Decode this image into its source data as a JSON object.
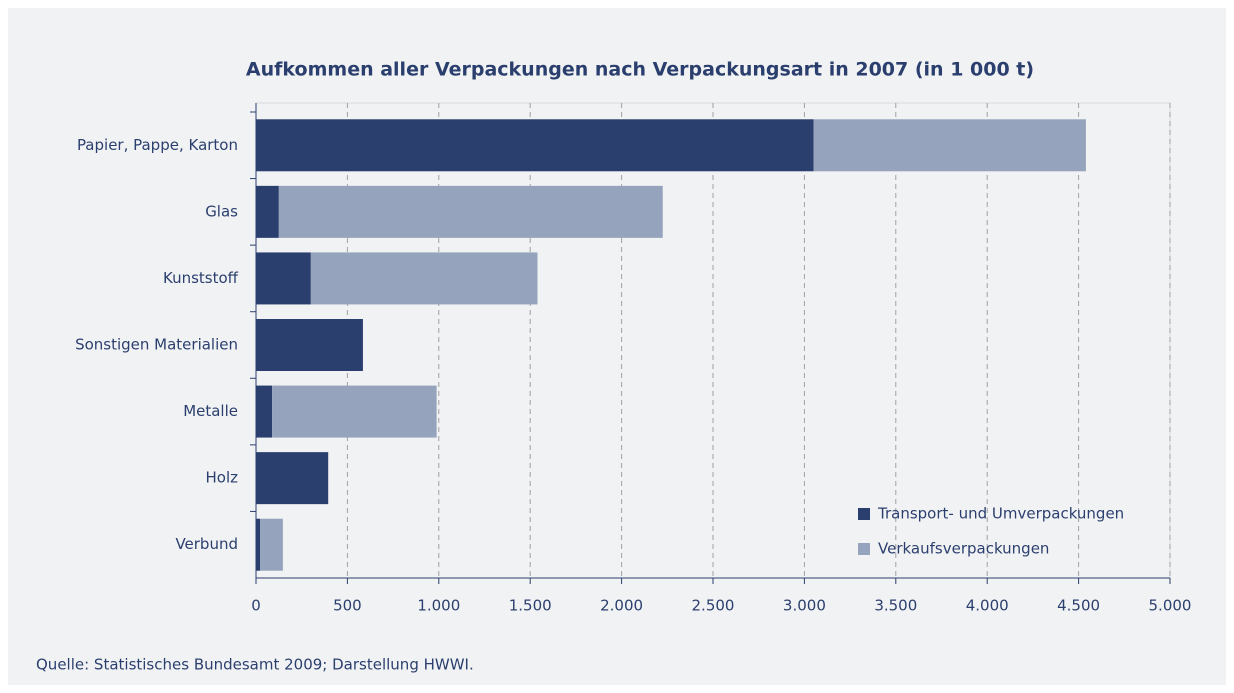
{
  "chart_data": {
    "type": "stacked-hbar",
    "title": "Aufkommen aller Verpackungen nach Verpackungsart in 2007 (in 1 000 t)",
    "source": "Quelle: Statistisches Bundesamt 2009; Darstellung HWWI.",
    "categories": [
      "Papier, Pappe, Karton",
      "Glas",
      "Kunststoff",
      "Sonstigen Materialien",
      "Metalle",
      "Holz",
      "Verbund"
    ],
    "series": [
      {
        "name": "Transport- und Umverpackungen",
        "color": "#2b3f6e",
        "values": [
          3050,
          125,
          300,
          585,
          88,
          395,
          22
        ]
      },
      {
        "name": "Verkaufsverpackungen",
        "color": "#95a3bd",
        "values": [
          1490,
          2100,
          1240,
          0,
          900,
          0,
          125
        ]
      }
    ],
    "xlim": [
      0,
      5000
    ],
    "xticks": [
      0,
      500,
      {
        "value": 1000,
        "label": "1.000"
      },
      {
        "value": 1500,
        "label": "1.500"
      },
      {
        "value": 2000,
        "label": "2.000"
      },
      {
        "value": 2500,
        "label": "2.500"
      },
      {
        "value": 3000,
        "label": "3.000"
      },
      {
        "value": 3500,
        "label": "3.500"
      },
      {
        "value": 4000,
        "label": "4.000"
      },
      {
        "value": 4500,
        "label": "4.500"
      },
      {
        "value": 5000,
        "label": "5.000"
      }
    ],
    "grid": true,
    "legend": "lower-right"
  }
}
